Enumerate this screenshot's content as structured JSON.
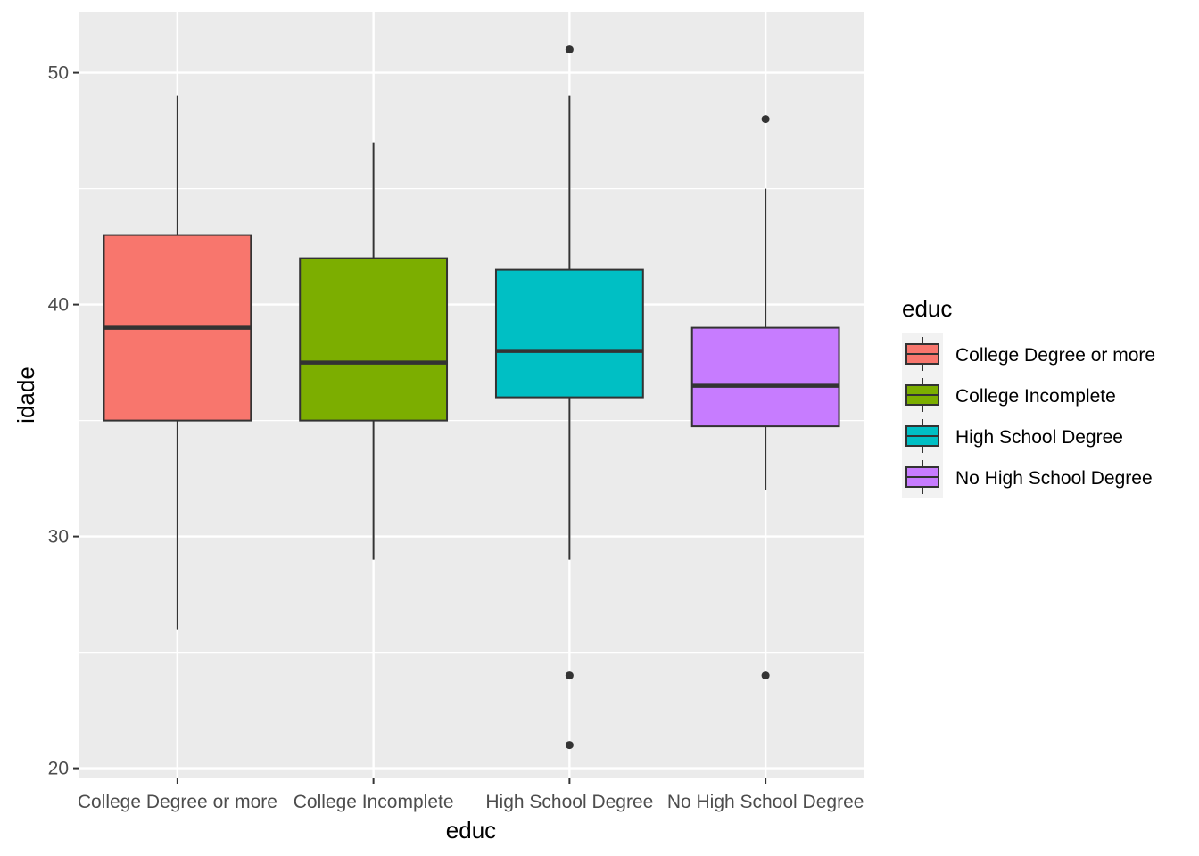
{
  "chart_data": {
    "type": "boxplot",
    "xlabel": "educ",
    "ylabel": "idade",
    "ylim": [
      19.6,
      52.6
    ],
    "y_ticks": [
      20,
      30,
      40,
      50
    ],
    "y_minor_ticks": [
      25,
      35,
      45
    ],
    "grid": true,
    "legend": {
      "title": "educ",
      "placement": "right"
    },
    "categories": [
      "College Degree or more",
      "College Incomplete",
      "High School Degree",
      "No High School Degree"
    ],
    "series": [
      {
        "name": "College Degree or more",
        "color": "#F8766D",
        "whisker_low": 26,
        "q1": 35,
        "median": 39,
        "q3": 43,
        "whisker_high": 49,
        "outliers": []
      },
      {
        "name": "College Incomplete",
        "color": "#7CAE00",
        "whisker_low": 29,
        "q1": 35,
        "median": 37.5,
        "q3": 42,
        "whisker_high": 47,
        "outliers": []
      },
      {
        "name": "High School Degree",
        "color": "#00BFC4",
        "whisker_low": 29,
        "q1": 36,
        "median": 38,
        "q3": 41.5,
        "whisker_high": 49,
        "outliers": [
          51,
          24,
          21
        ]
      },
      {
        "name": "No High School Degree",
        "color": "#C77CFF",
        "whisker_low": 32,
        "q1": 34.75,
        "median": 36.5,
        "q3": 39,
        "whisker_high": 45,
        "outliers": [
          48,
          24
        ]
      }
    ],
    "panel_background": "#EBEBEB",
    "box_outline_color": "#333333"
  }
}
